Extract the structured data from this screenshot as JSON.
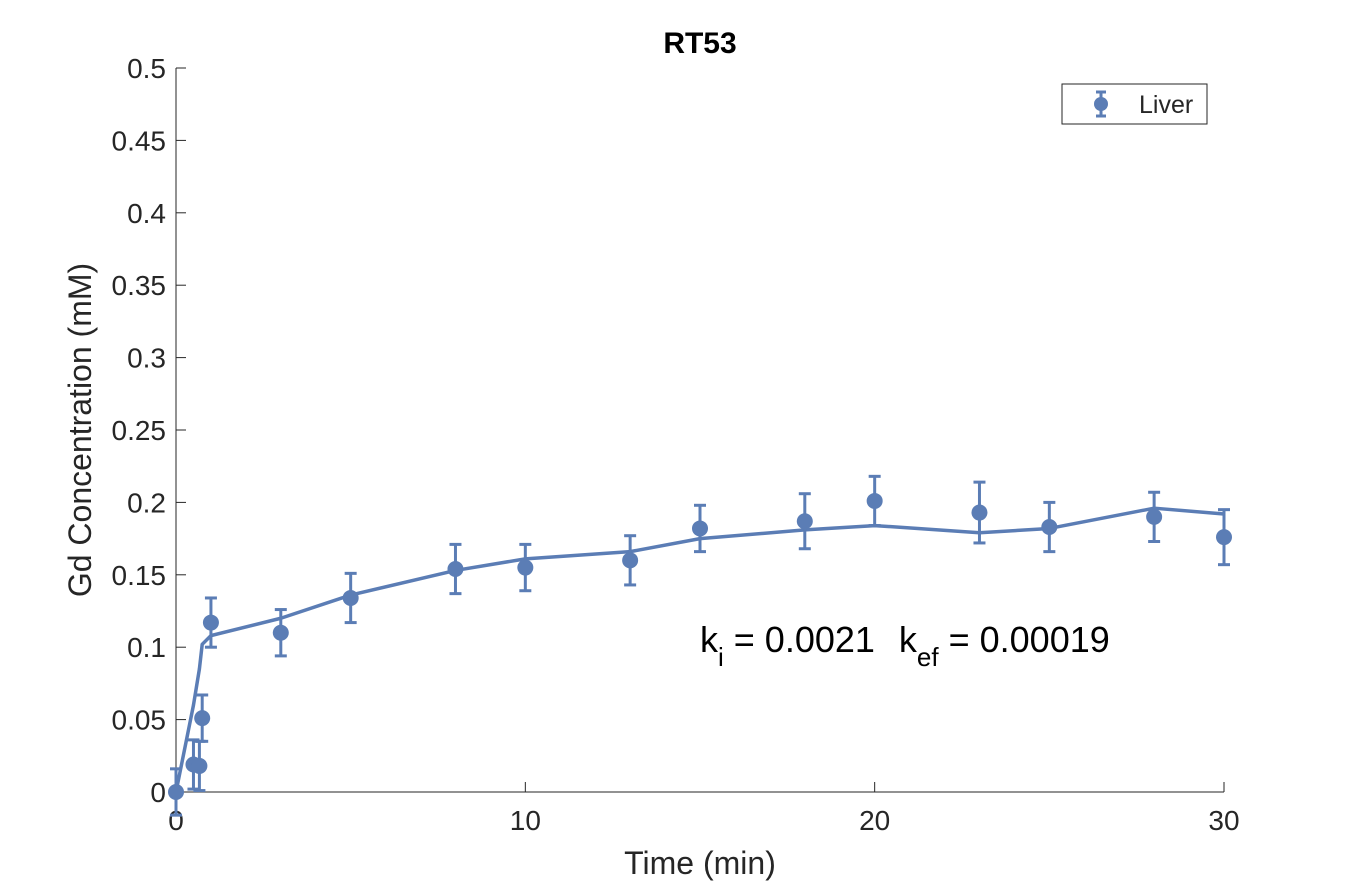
{
  "chart_data": {
    "type": "scatter",
    "title": "RT53",
    "xlabel": "Time (min)",
    "ylabel": "Gd Concentration (mM)",
    "xlim": [
      0,
      30
    ],
    "ylim": [
      0,
      0.5
    ],
    "xticks": [
      0,
      10,
      20,
      30
    ],
    "xtick_labels": [
      "0",
      "10",
      "20",
      "30"
    ],
    "yticks": [
      0,
      0.05,
      0.1,
      0.15,
      0.2,
      0.25,
      0.3,
      0.35,
      0.4,
      0.45,
      0.5
    ],
    "ytick_labels": [
      "0",
      "0.05",
      "0.1",
      "0.15",
      "0.2",
      "0.25",
      "0.3",
      "0.35",
      "0.4",
      "0.45",
      "0.5"
    ],
    "grid": false,
    "legend_position": "top-right",
    "series": [
      {
        "name": "Liver",
        "color": "#5b7db5",
        "x": [
          0,
          0.5,
          0.67,
          0.75,
          1.0,
          3,
          5,
          8,
          10,
          13,
          15,
          18,
          20,
          23,
          25,
          28,
          30
        ],
        "y": [
          0.0,
          0.019,
          0.018,
          0.051,
          0.117,
          0.11,
          0.134,
          0.154,
          0.155,
          0.16,
          0.182,
          0.187,
          0.201,
          0.193,
          0.183,
          0.19,
          0.176
        ],
        "error": [
          0.016,
          0.017,
          0.017,
          0.016,
          0.017,
          0.016,
          0.017,
          0.017,
          0.016,
          0.017,
          0.016,
          0.019,
          0.017,
          0.021,
          0.017,
          0.017,
          0.019
        ]
      }
    ],
    "fit": {
      "color": "#5b7db5",
      "x": [
        0,
        0.5,
        0.67,
        0.75,
        1.0,
        3,
        5,
        8,
        10,
        13,
        15,
        18,
        20,
        23,
        25,
        28,
        30
      ],
      "y": [
        0.0,
        0.06,
        0.085,
        0.102,
        0.108,
        0.12,
        0.136,
        0.153,
        0.161,
        0.166,
        0.175,
        0.181,
        0.184,
        0.179,
        0.182,
        0.196,
        0.192
      ]
    },
    "annotation": {
      "k_i_symbol": "k",
      "k_i_sub": "i",
      "k_i_value": " = 0.0021",
      "k_ef_symbol": "k",
      "k_ef_sub": "ef",
      "k_ef_value": " = 0.00019"
    }
  }
}
